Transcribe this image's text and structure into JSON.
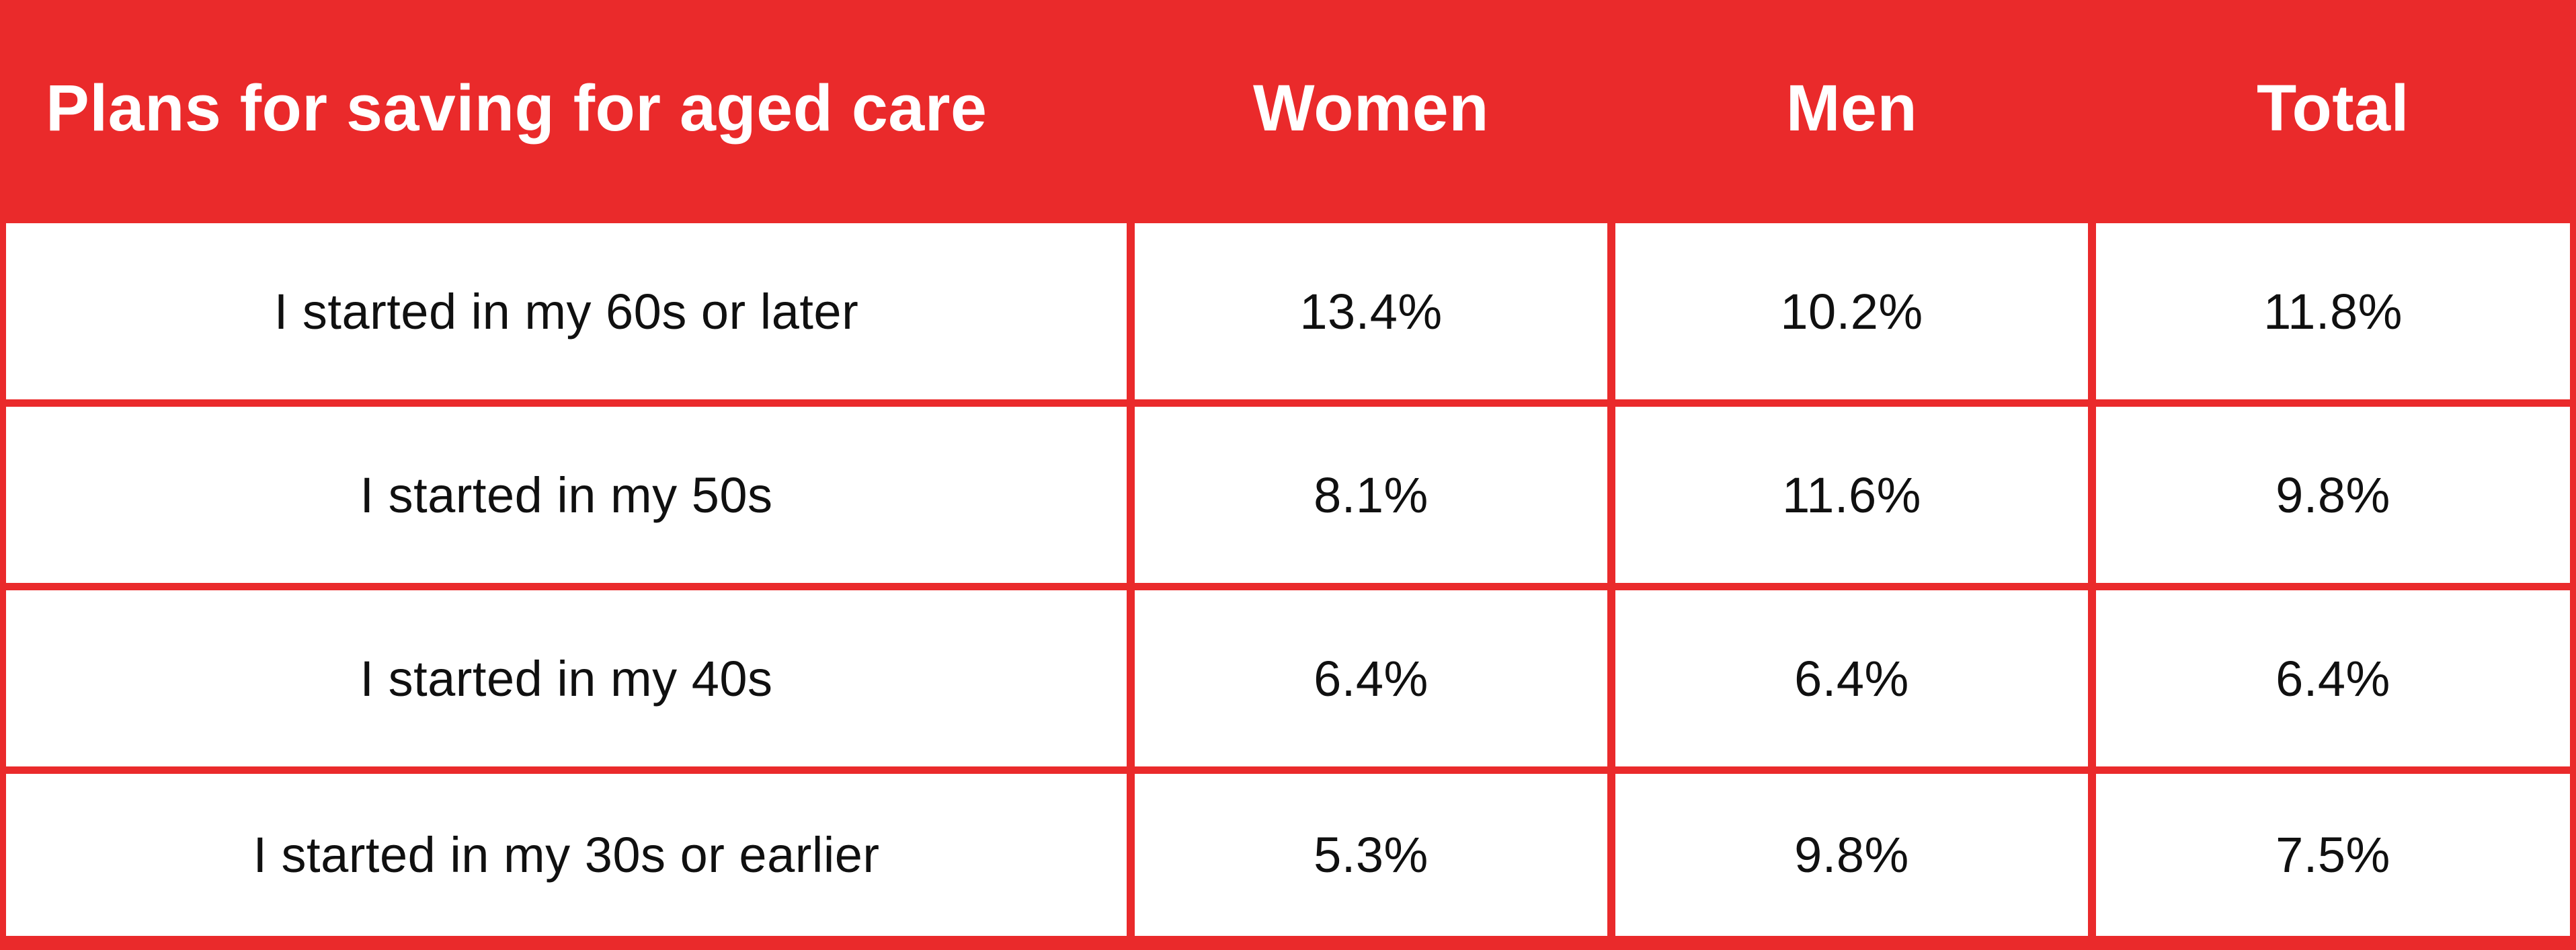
{
  "table": {
    "title": "Plans for saving for aged care",
    "header": {
      "col_women": "Women",
      "col_men": "Men",
      "col_total": "Total"
    },
    "rows": [
      {
        "label": "I started in my 60s or later",
        "women": "13.4%",
        "men": "10.2%",
        "total": "11.8%"
      },
      {
        "label": "I started in my 50s",
        "women": "8.1%",
        "men": "11.6%",
        "total": "9.8%"
      },
      {
        "label": "I started in my 40s",
        "women": "6.4%",
        "men": "6.4%",
        "total": "6.4%"
      },
      {
        "label": "I started in my 30s or earlier",
        "women": "5.3%",
        "men": "9.8%",
        "total": "7.5%"
      }
    ]
  },
  "colors": {
    "accent_red": "#EA2A2B",
    "cell_background": "#FFFFFF",
    "header_text": "#FFFFFF",
    "body_text": "#101010"
  },
  "chart_data": {
    "type": "table",
    "title": "Plans for saving for aged care",
    "columns": [
      "Women",
      "Men",
      "Total"
    ],
    "row_labels": [
      "I started in my 60s or later",
      "I started in my 50s",
      "I started in my 40s",
      "I started in my 30s or earlier"
    ],
    "series": [
      {
        "name": "Women",
        "values": [
          13.4,
          8.1,
          6.4,
          5.3
        ]
      },
      {
        "name": "Men",
        "values": [
          10.2,
          11.6,
          6.4,
          9.8
        ]
      },
      {
        "name": "Total",
        "values": [
          11.8,
          9.8,
          6.4,
          7.5
        ]
      }
    ],
    "unit": "%"
  }
}
